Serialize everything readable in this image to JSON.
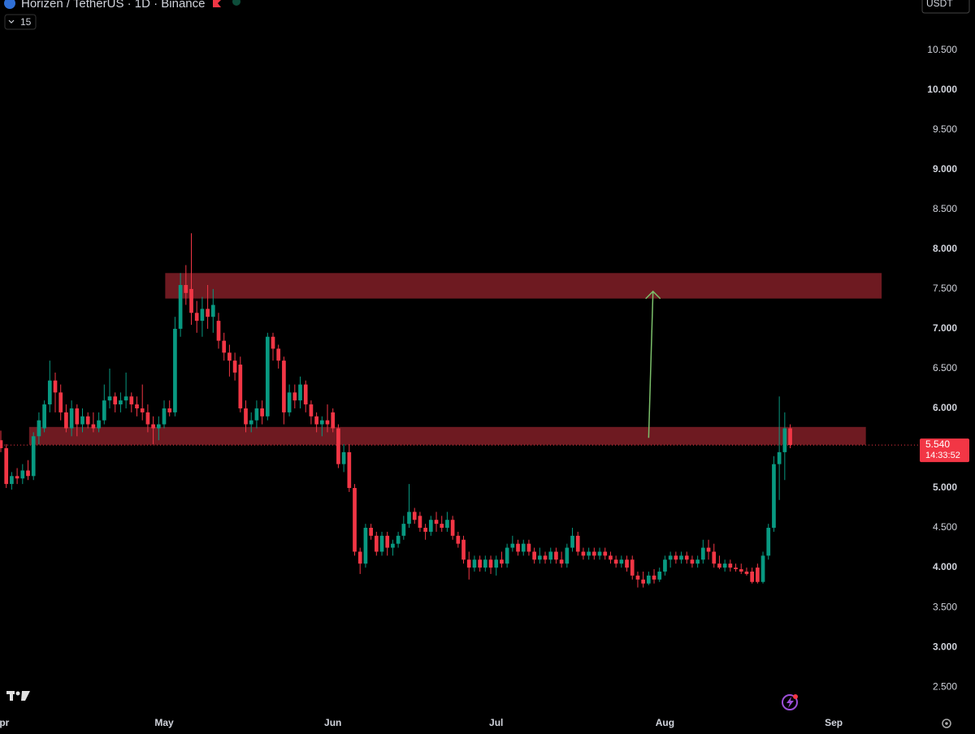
{
  "chart_data": {
    "type": "candlestick",
    "title": "Horizen / TetherUS · 1D · Binance",
    "interval_badge": "15",
    "currency": "USDT",
    "up_color": "#089981",
    "down_color": "#f23645",
    "zone_color": "#6e1a21",
    "arrow_color": "#7bbf6a",
    "xlim": [
      0,
      168.5
    ],
    "xticks": [
      {
        "value": 0,
        "label": "Apr"
      },
      {
        "value": 30,
        "label": "May"
      },
      {
        "value": 61,
        "label": "Jun"
      },
      {
        "value": 91,
        "label": "Jul"
      },
      {
        "value": 122,
        "label": "Aug"
      },
      {
        "value": 153,
        "label": "Sep"
      }
    ],
    "ylim": [
      2.175,
      11.13
    ],
    "yticks": [
      {
        "value": 2.5,
        "label": "2.500"
      },
      {
        "value": 3,
        "label": "3.000"
      },
      {
        "value": 3.5,
        "label": "3.500"
      },
      {
        "value": 4,
        "label": "4.000"
      },
      {
        "value": 4.5,
        "label": "4.500"
      },
      {
        "value": 5,
        "label": "5.000"
      },
      {
        "value": 5.5,
        "label": "5.500"
      },
      {
        "value": 6,
        "label": "6.000"
      },
      {
        "value": 6.5,
        "label": "6.500"
      },
      {
        "value": 7,
        "label": "7.000"
      },
      {
        "value": 7.5,
        "label": "7.500"
      },
      {
        "value": 8,
        "label": "8.000"
      },
      {
        "value": 8.5,
        "label": "8.500"
      },
      {
        "value": 9,
        "label": "9.000"
      },
      {
        "value": 9.5,
        "label": "9.500"
      },
      {
        "value": 10,
        "label": "10.000"
      },
      {
        "value": 10.5,
        "label": "10.500"
      }
    ],
    "last_price": {
      "value": 5.54,
      "label": "5.540"
    },
    "countdown": "14:33:52",
    "zones": [
      {
        "x": [
          30.2,
          161.8
        ],
        "y": [
          7.38,
          7.7
        ]
      },
      {
        "x": [
          5.2,
          158.9
        ],
        "y": [
          5.543,
          5.767
        ]
      }
    ],
    "arrow": {
      "x": [
        119,
        119.8
      ],
      "y": [
        5.63,
        7.47
      ]
    },
    "candles": [
      [
        5.6,
        5.72,
        5.45,
        5.5
      ],
      [
        5.5,
        5.55,
        5.0,
        5.05
      ],
      [
        5.05,
        5.2,
        4.98,
        5.15
      ],
      [
        5.15,
        5.25,
        5.05,
        5.12
      ],
      [
        5.12,
        5.3,
        5.05,
        5.22
      ],
      [
        5.22,
        5.35,
        5.1,
        5.15
      ],
      [
        5.15,
        5.7,
        5.1,
        5.65
      ],
      [
        5.65,
        5.95,
        5.55,
        5.85
      ],
      [
        5.75,
        6.1,
        5.7,
        6.05
      ],
      [
        6.05,
        6.6,
        5.95,
        6.35
      ],
      [
        6.35,
        6.45,
        5.95,
        6.2
      ],
      [
        6.2,
        6.3,
        5.85,
        5.95
      ],
      [
        5.95,
        6.05,
        5.7,
        5.75
      ],
      [
        5.75,
        6.1,
        5.65,
        6.0
      ],
      [
        6.0,
        6.05,
        5.65,
        5.8
      ],
      [
        5.8,
        6.0,
        5.7,
        5.9
      ],
      [
        5.9,
        5.95,
        5.75,
        5.8
      ],
      [
        5.8,
        5.95,
        5.7,
        5.75
      ],
      [
        5.75,
        5.95,
        5.7,
        5.85
      ],
      [
        5.85,
        6.3,
        5.8,
        6.1
      ],
      [
        6.1,
        6.5,
        6.0,
        6.15
      ],
      [
        6.15,
        6.2,
        5.95,
        6.05
      ],
      [
        6.05,
        6.2,
        5.95,
        6.1
      ],
      [
        6.1,
        6.45,
        6.0,
        6.15
      ],
      [
        6.15,
        6.2,
        5.95,
        6.05
      ],
      [
        6.05,
        6.15,
        5.9,
        6.0
      ],
      [
        6.0,
        6.3,
        5.85,
        5.95
      ],
      [
        5.95,
        6.05,
        5.7,
        5.8
      ],
      [
        5.8,
        5.9,
        5.55,
        5.75
      ],
      [
        5.75,
        5.9,
        5.6,
        5.8
      ],
      [
        5.8,
        6.1,
        5.75,
        6.0
      ],
      [
        6.0,
        6.1,
        5.9,
        5.95
      ],
      [
        5.95,
        7.15,
        5.9,
        7.0
      ],
      [
        7.0,
        7.7,
        6.9,
        7.55
      ],
      [
        7.55,
        7.8,
        7.3,
        7.45
      ],
      [
        7.5,
        8.2,
        7.05,
        7.2
      ],
      [
        7.2,
        7.35,
        6.95,
        7.1
      ],
      [
        7.1,
        7.4,
        6.9,
        7.25
      ],
      [
        7.25,
        7.55,
        7.0,
        7.15
      ],
      [
        7.15,
        7.5,
        6.95,
        7.3
      ],
      [
        7.1,
        7.2,
        6.75,
        6.85
      ],
      [
        6.85,
        6.95,
        6.6,
        6.7
      ],
      [
        6.7,
        6.8,
        6.4,
        6.6
      ],
      [
        6.6,
        6.7,
        6.35,
        6.45
      ],
      [
        6.55,
        6.65,
        5.95,
        6.0
      ],
      [
        6.0,
        6.1,
        5.7,
        5.8
      ],
      [
        5.8,
        5.95,
        5.7,
        5.85
      ],
      [
        5.85,
        6.1,
        5.75,
        6.0
      ],
      [
        6.0,
        6.1,
        5.8,
        5.9
      ],
      [
        5.9,
        6.95,
        5.85,
        6.9
      ],
      [
        6.9,
        6.95,
        6.6,
        6.75
      ],
      [
        6.75,
        6.8,
        6.5,
        6.6
      ],
      [
        6.6,
        6.65,
        5.8,
        5.95
      ],
      [
        5.95,
        6.3,
        5.9,
        6.2
      ],
      [
        6.2,
        6.3,
        6.0,
        6.1
      ],
      [
        6.1,
        6.4,
        6.0,
        6.3
      ],
      [
        6.3,
        6.35,
        5.95,
        6.05
      ],
      [
        6.05,
        6.1,
        5.8,
        5.9
      ],
      [
        5.9,
        5.95,
        5.7,
        5.8
      ],
      [
        5.8,
        5.9,
        5.65,
        5.85
      ],
      [
        5.85,
        6.05,
        5.7,
        5.8
      ],
      [
        5.95,
        6.0,
        5.7,
        5.75
      ],
      [
        5.75,
        5.8,
        5.25,
        5.3
      ],
      [
        5.3,
        5.55,
        5.2,
        5.45
      ],
      [
        5.45,
        5.55,
        4.95,
        5.0
      ],
      [
        5.0,
        5.05,
        4.15,
        4.2
      ],
      [
        4.2,
        4.25,
        3.92,
        4.05
      ],
      [
        4.05,
        4.55,
        4.0,
        4.5
      ],
      [
        4.5,
        4.55,
        4.35,
        4.4
      ],
      [
        4.4,
        4.45,
        4.15,
        4.2
      ],
      [
        4.2,
        4.45,
        4.15,
        4.4
      ],
      [
        4.4,
        4.45,
        4.15,
        4.25
      ],
      [
        4.25,
        4.35,
        4.15,
        4.3
      ],
      [
        4.3,
        4.45,
        4.25,
        4.4
      ],
      [
        4.4,
        4.65,
        4.35,
        4.55
      ],
      [
        4.55,
        5.05,
        4.5,
        4.7
      ],
      [
        4.7,
        4.75,
        4.55,
        4.6
      ],
      [
        4.65,
        4.7,
        4.45,
        4.5
      ],
      [
        4.5,
        4.55,
        4.35,
        4.45
      ],
      [
        4.45,
        4.65,
        4.4,
        4.6
      ],
      [
        4.6,
        4.7,
        4.45,
        4.55
      ],
      [
        4.55,
        4.65,
        4.45,
        4.5
      ],
      [
        4.5,
        4.7,
        4.45,
        4.6
      ],
      [
        4.6,
        4.65,
        4.35,
        4.4
      ],
      [
        4.4,
        4.45,
        4.25,
        4.3
      ],
      [
        4.35,
        4.4,
        4.05,
        4.1
      ],
      [
        4.1,
        4.2,
        3.85,
        4.0
      ],
      [
        4.0,
        4.15,
        3.95,
        4.1
      ],
      [
        4.1,
        4.15,
        3.95,
        4.0
      ],
      [
        4.0,
        4.15,
        3.95,
        4.1
      ],
      [
        4.1,
        4.15,
        3.92,
        4.0
      ],
      [
        4.0,
        4.15,
        3.9,
        4.1
      ],
      [
        4.1,
        4.2,
        4.0,
        4.05
      ],
      [
        4.05,
        4.3,
        4.0,
        4.25
      ],
      [
        4.25,
        4.4,
        4.2,
        4.3
      ],
      [
        4.3,
        4.35,
        4.15,
        4.2
      ],
      [
        4.2,
        4.35,
        4.15,
        4.3
      ],
      [
        4.3,
        4.35,
        4.15,
        4.2
      ],
      [
        4.2,
        4.25,
        4.05,
        4.1
      ],
      [
        4.1,
        4.25,
        4.05,
        4.15
      ],
      [
        4.15,
        4.2,
        4.05,
        4.1
      ],
      [
        4.1,
        4.25,
        4.05,
        4.2
      ],
      [
        4.2,
        4.25,
        4.05,
        4.1
      ],
      [
        4.1,
        4.2,
        4.0,
        4.05
      ],
      [
        4.05,
        4.3,
        4.0,
        4.25
      ],
      [
        4.25,
        4.5,
        4.2,
        4.4
      ],
      [
        4.4,
        4.45,
        4.15,
        4.2
      ],
      [
        4.2,
        4.25,
        4.1,
        4.15
      ],
      [
        4.15,
        4.25,
        4.1,
        4.2
      ],
      [
        4.2,
        4.25,
        4.1,
        4.15
      ],
      [
        4.15,
        4.25,
        4.1,
        4.2
      ],
      [
        4.2,
        4.25,
        4.1,
        4.15
      ],
      [
        4.15,
        4.2,
        4.05,
        4.1
      ],
      [
        4.1,
        4.15,
        4.0,
        4.05
      ],
      [
        4.05,
        4.15,
        4.0,
        4.1
      ],
      [
        4.1,
        4.15,
        3.95,
        4.0
      ],
      [
        4.1,
        4.15,
        3.85,
        3.9
      ],
      [
        3.9,
        3.95,
        3.75,
        3.85
      ],
      [
        3.85,
        3.95,
        3.75,
        3.8
      ],
      [
        3.8,
        3.95,
        3.78,
        3.9
      ],
      [
        3.9,
        3.98,
        3.8,
        3.85
      ],
      [
        3.85,
        4.0,
        3.82,
        3.95
      ],
      [
        3.95,
        4.15,
        3.9,
        4.1
      ],
      [
        4.1,
        4.2,
        4.0,
        4.15
      ],
      [
        4.15,
        4.2,
        4.05,
        4.1
      ],
      [
        4.1,
        4.2,
        4.05,
        4.15
      ],
      [
        4.15,
        4.2,
        4.05,
        4.1
      ],
      [
        4.1,
        4.15,
        4.0,
        4.05
      ],
      [
        4.05,
        4.15,
        4.0,
        4.1
      ],
      [
        4.1,
        4.35,
        4.05,
        4.25
      ],
      [
        4.25,
        4.35,
        4.1,
        4.2
      ],
      [
        4.2,
        4.3,
        4.0,
        4.05
      ],
      [
        4.05,
        4.15,
        3.98,
        4.0
      ],
      [
        4.0,
        4.1,
        3.95,
        4.05
      ],
      [
        4.05,
        4.1,
        3.95,
        4.0
      ],
      [
        4.0,
        4.05,
        3.95,
        3.98
      ],
      [
        3.98,
        4.05,
        3.92,
        3.95
      ],
      [
        3.95,
        4.0,
        3.9,
        3.92
      ],
      [
        3.95,
        4.0,
        3.8,
        3.82
      ],
      [
        4.0,
        4.05,
        3.8,
        3.82
      ],
      [
        3.82,
        4.2,
        3.8,
        4.15
      ],
      [
        4.15,
        4.55,
        4.1,
        4.5
      ],
      [
        4.5,
        5.4,
        4.45,
        5.3
      ],
      [
        5.3,
        6.15,
        4.85,
        5.45
      ],
      [
        5.45,
        5.95,
        5.1,
        5.75
      ],
      [
        5.75,
        5.8,
        5.5,
        5.54
      ]
    ]
  }
}
